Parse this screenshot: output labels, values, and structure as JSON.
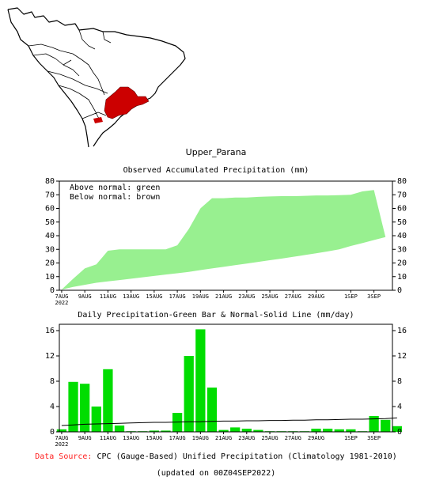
{
  "region_title": "Upper_Parana",
  "map": {
    "region_color": "#cc0000"
  },
  "chart_data": [
    {
      "type": "area",
      "title": "Observed Accumulated Precipitation (mm)",
      "xlabel": "",
      "ylabel": "",
      "ylim": [
        0,
        80
      ],
      "yticks": [
        0,
        10,
        20,
        30,
        40,
        50,
        60,
        70,
        80
      ],
      "x_tick_labels": [
        "7AUG",
        "9AUG",
        "11AUG",
        "13AUG",
        "15AUG",
        "17AUG",
        "19AUG",
        "21AUG",
        "23AUG",
        "25AUG",
        "27AUG",
        "29AUG",
        "1SEP",
        "3SEP"
      ],
      "x_tick_days": [
        0,
        2,
        4,
        6,
        8,
        10,
        12,
        14,
        16,
        18,
        20,
        22,
        25,
        27
      ],
      "x_year_label": "2022",
      "legend": [
        "Above normal: green",
        "Below normal: brown"
      ],
      "grid": false,
      "colors": {
        "above": "#98f090",
        "below": "#a05a28"
      },
      "series": [
        {
          "values": [
            0.5,
            8.5,
            16,
            19,
            29,
            30,
            30,
            30,
            30,
            30,
            33,
            45,
            60,
            67.5,
            67.5,
            68,
            68,
            68.5,
            68.8,
            69,
            69,
            69.2,
            69.5,
            69.5,
            69.7,
            70,
            72.5,
            73.5
          ]
        },
        {
          "values": [
            0.5,
            2.5,
            4,
            5.5,
            6.5,
            7.5,
            8.5,
            9.5,
            10.5,
            11.5,
            12.5,
            13.5,
            14.8,
            16,
            17.2,
            18.4,
            19.6,
            20.8,
            22,
            23.2,
            24.5,
            25.8,
            27.1,
            28.5,
            30,
            32.5,
            34.6,
            36.8,
            39
          ]
        }
      ]
    },
    {
      "type": "bar",
      "title": "Daily Precipitation-Green Bar & Normal-Solid Line (mm/day)",
      "xlabel": "",
      "ylabel": "",
      "ylim": [
        0,
        17
      ],
      "yticks": [
        0,
        4,
        8,
        12,
        16
      ],
      "x_tick_labels": [
        "7AUG",
        "9AUG",
        "11AUG",
        "13AUG",
        "15AUG",
        "17AUG",
        "19AUG",
        "21AUG",
        "23AUG",
        "25AUG",
        "27AUG",
        "29AUG",
        "1SEP",
        "3SEP"
      ],
      "x_tick_days": [
        0,
        2,
        4,
        6,
        8,
        10,
        12,
        14,
        16,
        18,
        20,
        22,
        25,
        27
      ],
      "x_year_label": "2022",
      "grid": false,
      "colors": {
        "bar": "#00dd00",
        "line": "#000000"
      },
      "series": [
        {
          "values": [
            0.4,
            7.9,
            7.6,
            4,
            9.9,
            1,
            0.1,
            0.1,
            0.2,
            0.2,
            3,
            12,
            16.2,
            7,
            0.3,
            0.7,
            0.5,
            0.3,
            0.1,
            0.1,
            0.1,
            0.1,
            0.5,
            0.5,
            0.4,
            0.4,
            0.1,
            2.5,
            1.9,
            0.9
          ]
        },
        {
          "values": [
            1.0,
            1.1,
            1.2,
            1.25,
            1.3,
            1.35,
            1.4,
            1.45,
            1.5,
            1.5,
            1.55,
            1.6,
            1.6,
            1.65,
            1.7,
            1.7,
            1.75,
            1.75,
            1.8,
            1.8,
            1.85,
            1.85,
            1.9,
            1.9,
            1.95,
            2.0,
            2.0,
            2.05,
            2.1,
            2.2
          ]
        }
      ]
    }
  ],
  "footer": {
    "source_label": "Data Source:",
    "source_text": "CPC (Gauge-Based) Unified Precipitation (Climatology 1981-2010)",
    "updated": "(updated on 00Z04SEP2022)"
  }
}
